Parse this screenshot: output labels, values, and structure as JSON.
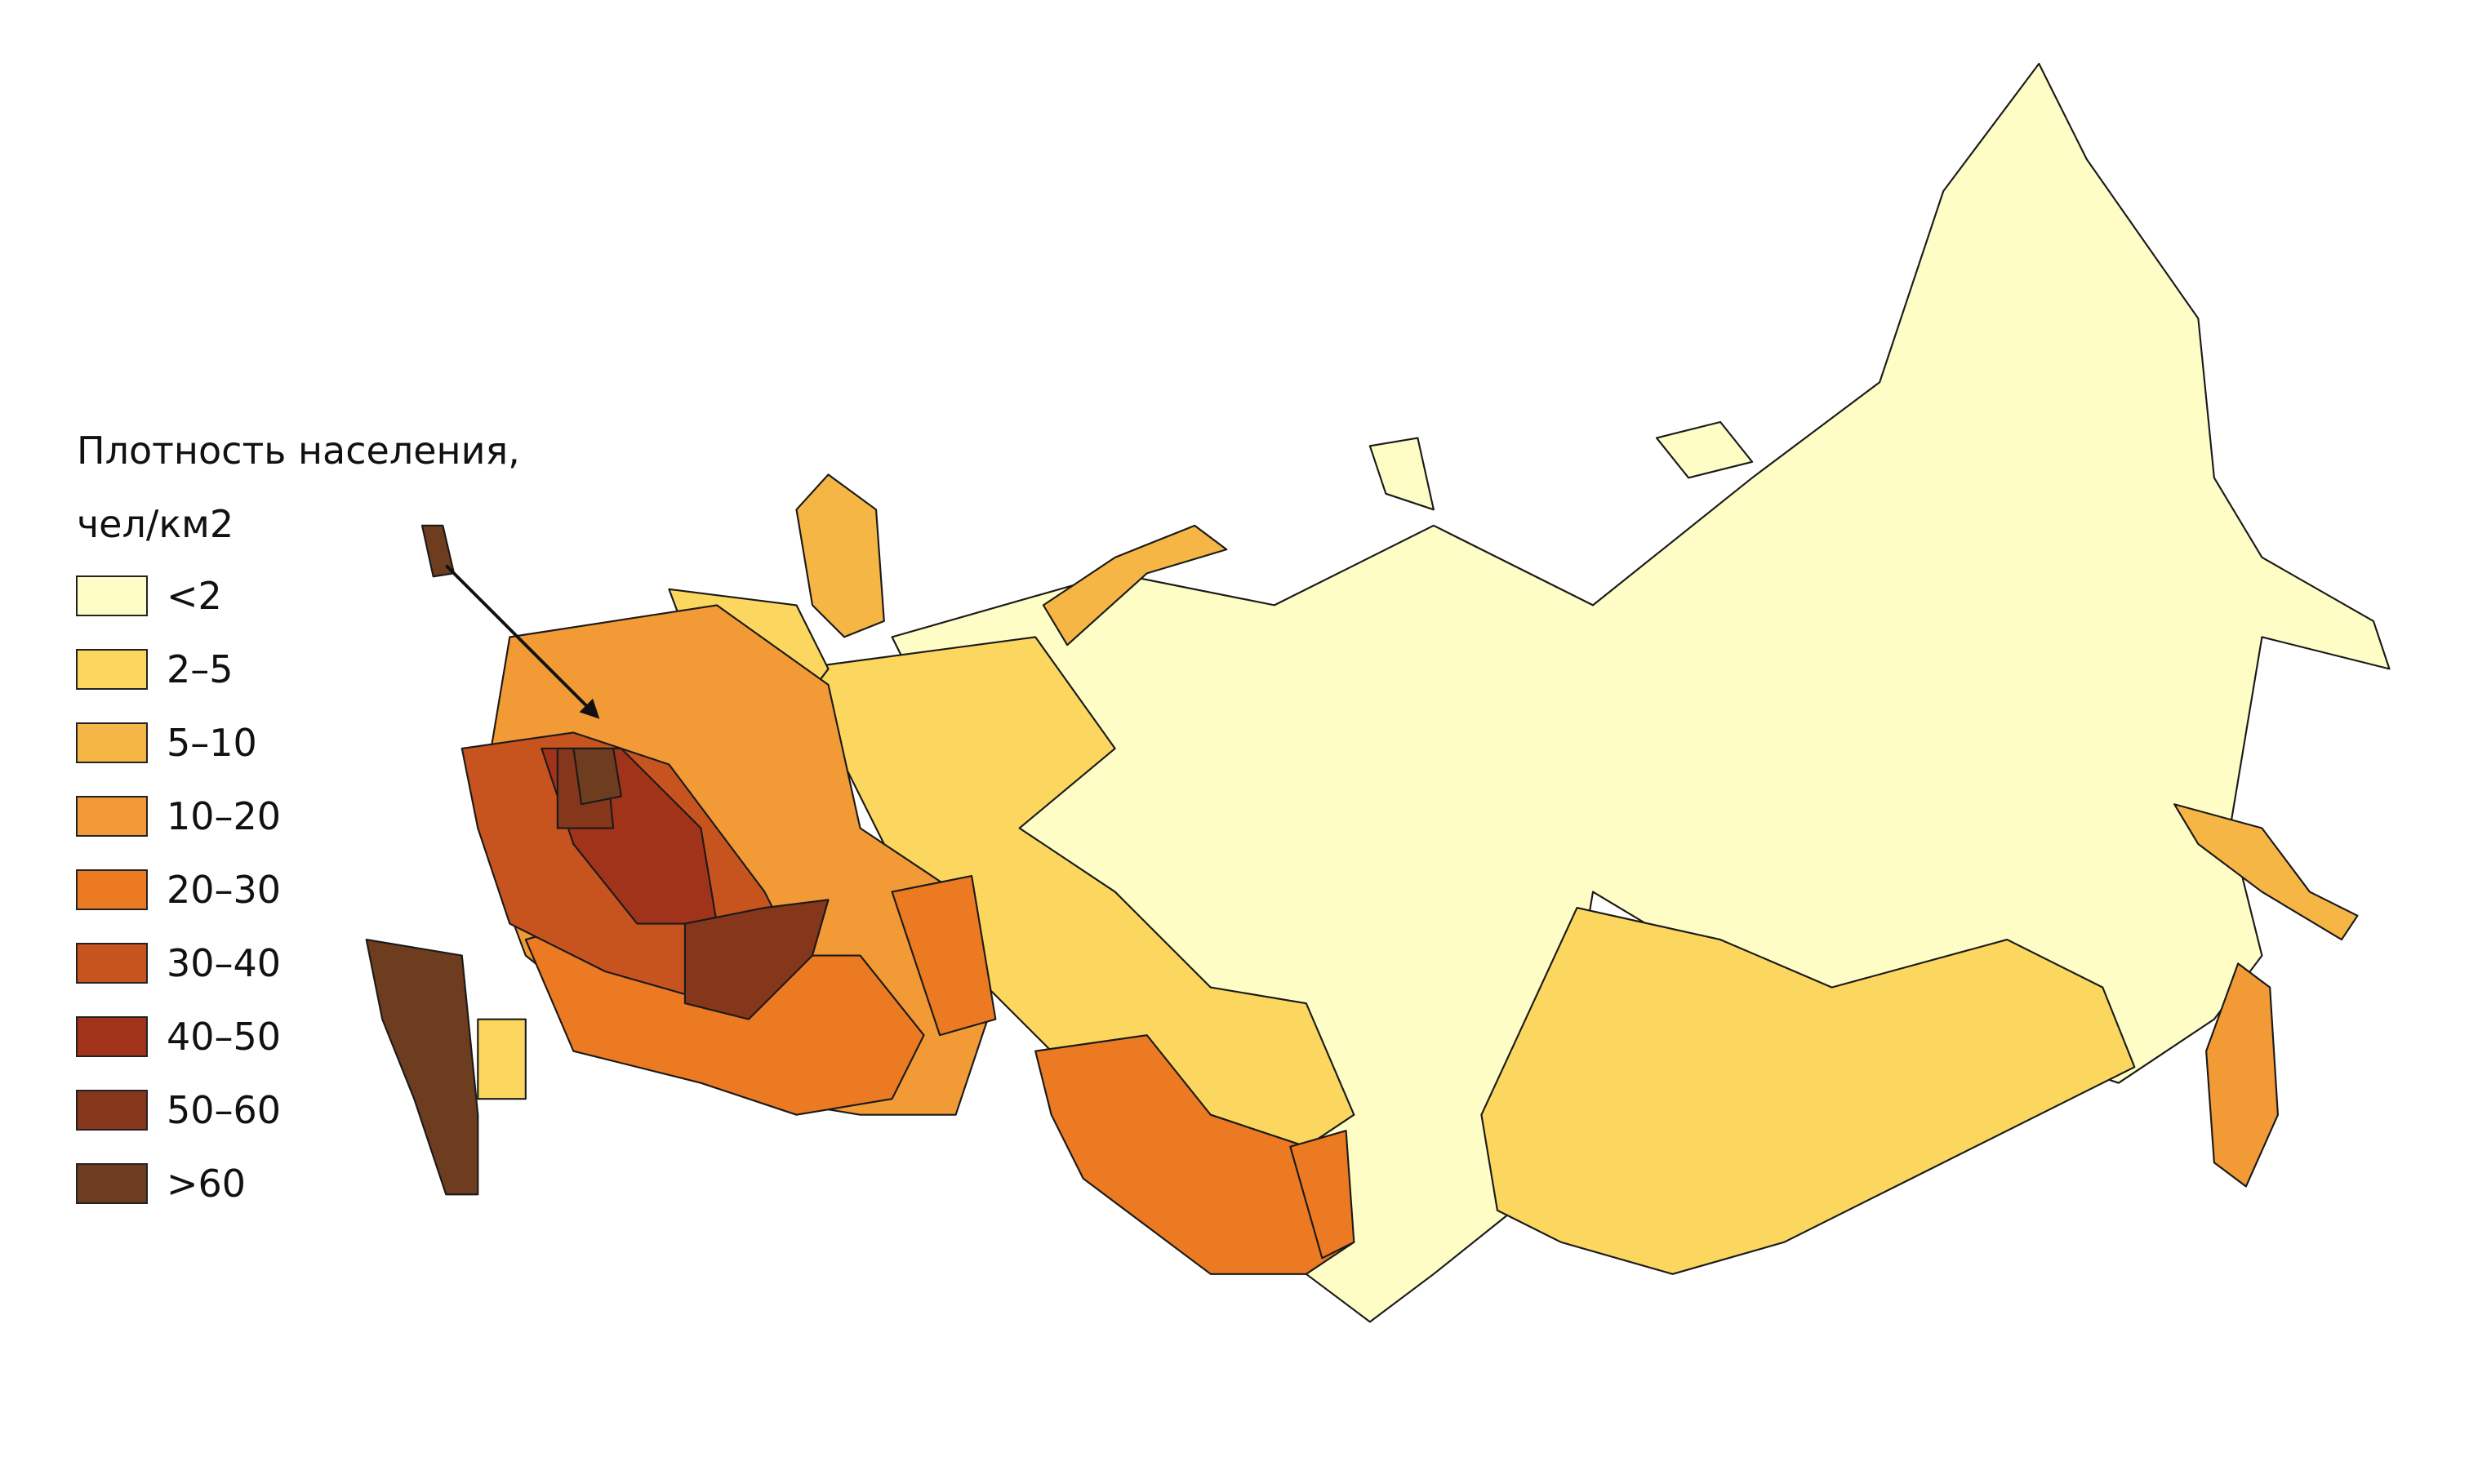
{
  "legend": {
    "title": [
      "Плотность населения,",
      "чел/км2"
    ],
    "items": [
      {
        "label": "<2",
        "color": "#fefdc6"
      },
      {
        "label": "2–5",
        "color": "#fbd75f"
      },
      {
        "label": "5–10",
        "color": "#f5b646"
      },
      {
        "label": "10–20",
        "color": "#f19a36"
      },
      {
        "label": "20–30",
        "color": "#eb7a23"
      },
      {
        "label": "30–40",
        "color": "#c7541f"
      },
      {
        "label": "40–50",
        "color": "#a1331a"
      },
      {
        "label": "50–60",
        "color": "#86361a"
      },
      {
        "label": ">60",
        "color": "#6e3c1e"
      }
    ]
  }
}
